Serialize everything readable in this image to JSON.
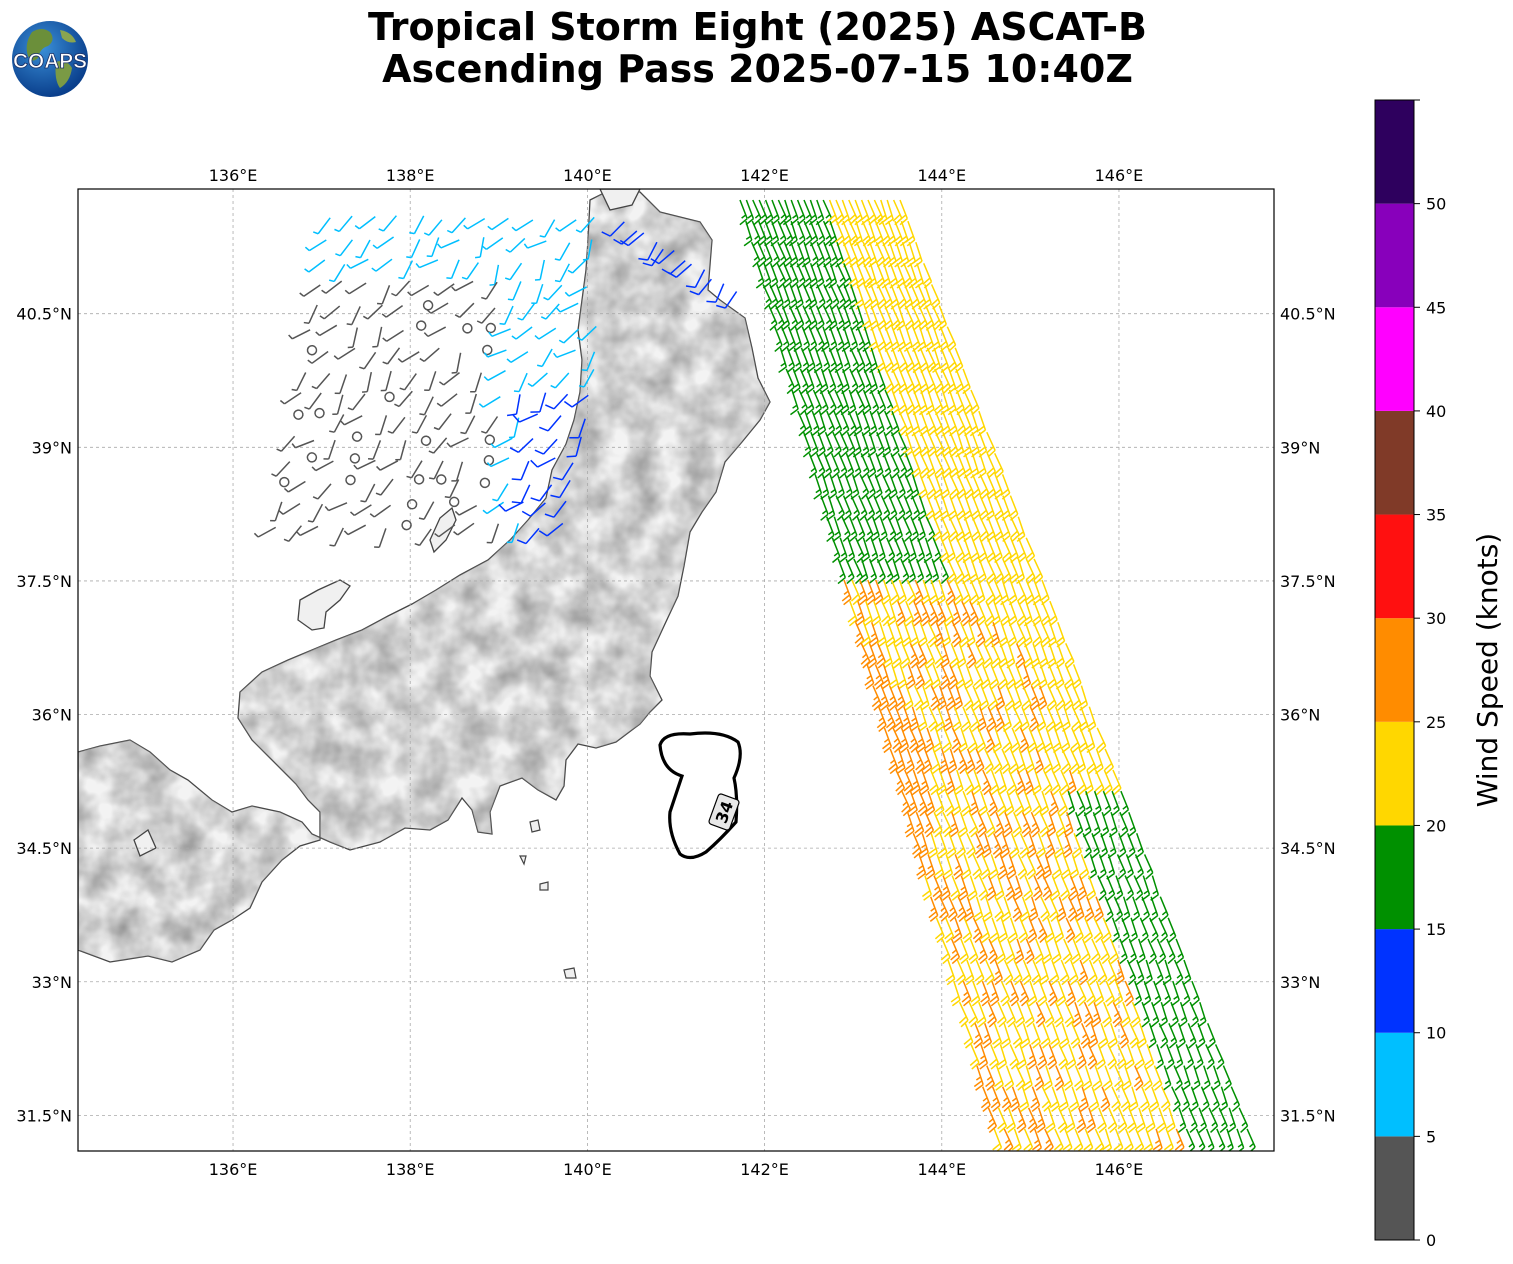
{
  "title": {
    "line1": "Tropical Storm Eight (2025) ASCAT-B",
    "line2": "Ascending Pass 2025-07-15 10:40Z"
  },
  "logo": {
    "text": "COAPS",
    "icon": "globe-logo-icon"
  },
  "map": {
    "lon_range": [
      134.25,
      147.75
    ],
    "lat_range": [
      31.1,
      41.9
    ],
    "x_ticks": [
      "136°E",
      "138°E",
      "140°E",
      "142°E",
      "144°E",
      "146°E"
    ],
    "x_tick_values": [
      136,
      138,
      140,
      142,
      144,
      146
    ],
    "y_ticks": [
      "31.5°N",
      "33°N",
      "34.5°N",
      "36°N",
      "37.5°N",
      "39°N",
      "40.5°N"
    ],
    "y_tick_values": [
      31.5,
      33,
      34.5,
      36,
      37.5,
      39,
      40.5
    ],
    "grid": true,
    "contour_label": "34",
    "contour_knots": 34
  },
  "colorbar": {
    "label": "Wind Speed (knots)",
    "ticks": [
      "0",
      "5",
      "10",
      "15",
      "20",
      "25",
      "30",
      "35",
      "40",
      "45",
      "50"
    ],
    "bins": [
      {
        "min": 0,
        "max": 5,
        "color": "#555555"
      },
      {
        "min": 5,
        "max": 10,
        "color": "#00bfff"
      },
      {
        "min": 10,
        "max": 15,
        "color": "#0033ff"
      },
      {
        "min": 15,
        "max": 20,
        "color": "#009000"
      },
      {
        "min": 20,
        "max": 25,
        "color": "#ffd700"
      },
      {
        "min": 25,
        "max": 30,
        "color": "#ff8c00"
      },
      {
        "min": 30,
        "max": 35,
        "color": "#ff1010"
      },
      {
        "min": 35,
        "max": 40,
        "color": "#803a28"
      },
      {
        "min": 40,
        "max": 45,
        "color": "#ff00ff"
      },
      {
        "min": 45,
        "max": 50,
        "color": "#8800bb"
      },
      {
        "min": 50,
        "max": 55,
        "color": "#2e005e"
      }
    ]
  }
}
